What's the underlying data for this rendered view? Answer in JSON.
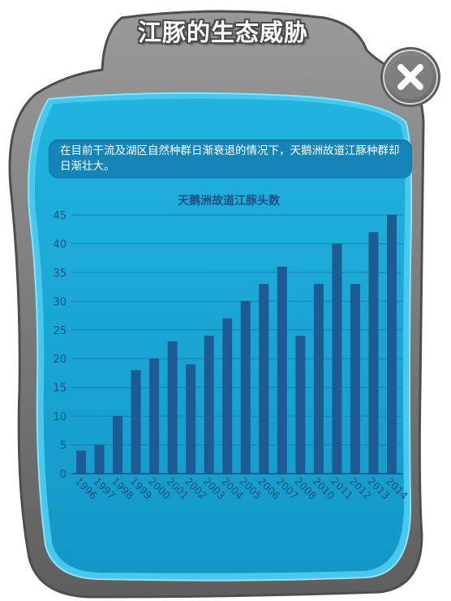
{
  "panel": {
    "title": "江豚的生态威胁",
    "description": "在目前干流及湖区自然种群日渐衰退的情况下，天鹅洲故道江豚种群却日渐壮大。",
    "close_icon": "close-x-icon",
    "colors": {
      "frame": "#7a7a7a",
      "panel": "#1aa9d6",
      "bar": "#1e5a94",
      "desc_bg": "#1585b8"
    }
  },
  "chart_data": {
    "type": "bar",
    "title": "天鹅洲故道江豚头数",
    "xlabel": "",
    "ylabel": "",
    "categories": [
      "1996",
      "1997",
      "1998",
      "1999",
      "2000",
      "2001",
      "2002",
      "2003",
      "2004",
      "2005",
      "2006",
      "2007",
      "2008",
      "2010",
      "2011",
      "2012",
      "2013",
      "2014"
    ],
    "values": [
      4,
      5,
      10,
      18,
      20,
      23,
      19,
      24,
      27,
      30,
      33,
      36,
      24,
      33,
      40,
      33,
      42,
      45
    ],
    "ylim": [
      0,
      45
    ],
    "yticks": [
      0,
      5,
      10,
      15,
      20,
      25,
      30,
      35,
      40,
      45
    ],
    "grid": true,
    "legend": "none"
  }
}
